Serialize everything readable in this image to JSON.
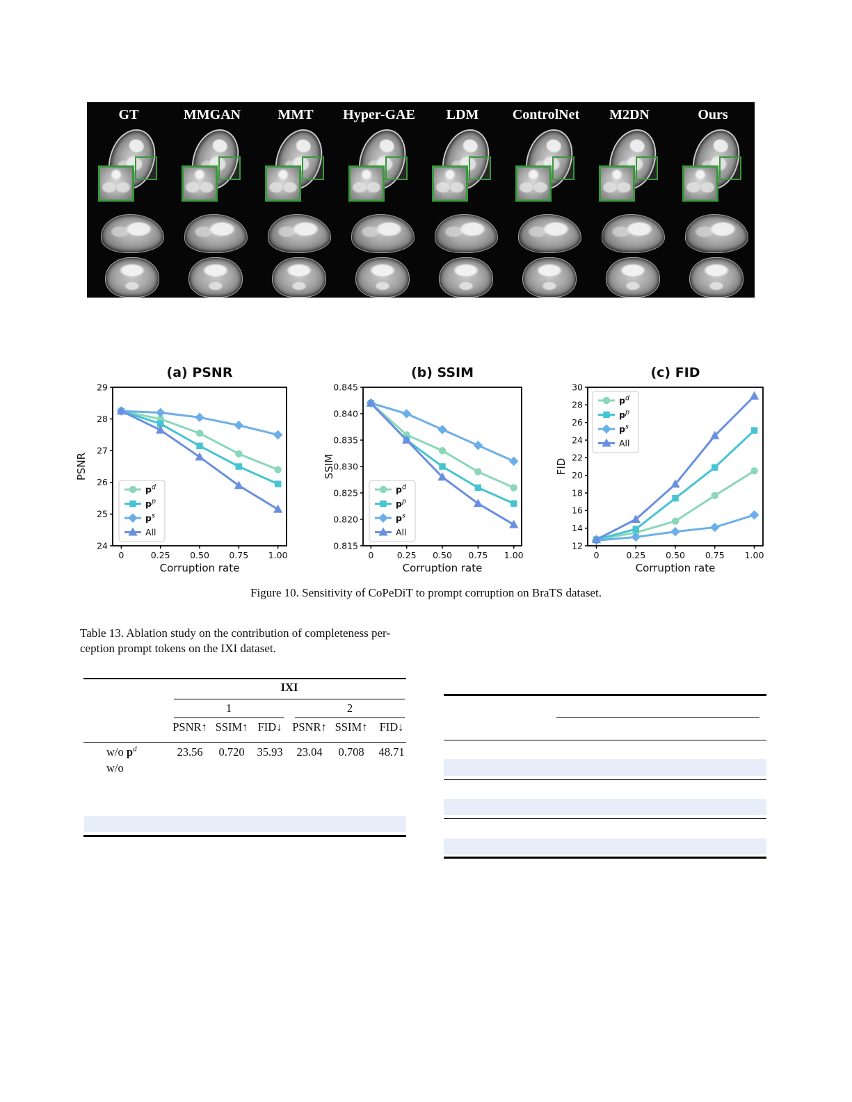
{
  "figure10": {
    "methods": [
      "GT",
      "MMGAN",
      "MMT",
      "Hyper-GAE",
      "LDM",
      "ControlNet",
      "M2DN",
      "Ours"
    ],
    "caption": "Figure 10. Sensitivity of CoPeDiT to prompt corruption on BraTS dataset.",
    "box_color": "#37983b"
  },
  "chart_data": [
    {
      "type": "line",
      "title": "(a) PSNR",
      "xlabel": "Corruption rate",
      "ylabel": "PSNR",
      "x": [
        0,
        0.25,
        0.5,
        0.75,
        1.0
      ],
      "xtick_labels": [
        "0",
        "0.25",
        "0.50",
        "0.75",
        "1.00"
      ],
      "ylim": [
        24,
        29
      ],
      "yticks": [
        24,
        25,
        26,
        27,
        28,
        29
      ],
      "ytick_labels": [
        "24",
        "25",
        "26",
        "27",
        "28",
        "29"
      ],
      "grid": false,
      "legend_position": "lower-left",
      "series": [
        {
          "label_symbol": "p",
          "label_sup": "d",
          "marker": "circle",
          "color": "#8bd7b9",
          "values": [
            28.25,
            28.0,
            27.55,
            26.9,
            26.4
          ]
        },
        {
          "label_symbol": "p",
          "label_sup": "p",
          "marker": "square",
          "color": "#45c4d2",
          "values": [
            28.25,
            27.85,
            27.15,
            26.5,
            25.95
          ]
        },
        {
          "label_symbol": "p",
          "label_sup": "s",
          "marker": "diamond",
          "color": "#6cafe8",
          "values": [
            28.25,
            28.2,
            28.05,
            27.8,
            27.5
          ]
        },
        {
          "label_symbol": "All",
          "label_sup": "",
          "marker": "triangle",
          "color": "#6a8fe0",
          "values": [
            28.25,
            27.65,
            26.8,
            25.9,
            25.15
          ]
        }
      ]
    },
    {
      "type": "line",
      "title": "(b) SSIM",
      "xlabel": "Corruption rate",
      "ylabel": "SSIM",
      "x": [
        0,
        0.25,
        0.5,
        0.75,
        1.0
      ],
      "xtick_labels": [
        "0",
        "0.25",
        "0.50",
        "0.75",
        "1.00"
      ],
      "ylim": [
        0.815,
        0.845
      ],
      "yticks": [
        0.815,
        0.82,
        0.825,
        0.83,
        0.835,
        0.84,
        0.845
      ],
      "ytick_labels": [
        "0.815",
        "0.820",
        "0.825",
        "0.830",
        "0.835",
        "0.840",
        "0.845"
      ],
      "grid": false,
      "legend_position": "lower-left",
      "series": [
        {
          "label_symbol": "p",
          "label_sup": "d",
          "marker": "circle",
          "color": "#8bd7b9",
          "values": [
            0.842,
            0.836,
            0.833,
            0.829,
            0.826
          ]
        },
        {
          "label_symbol": "p",
          "label_sup": "p",
          "marker": "square",
          "color": "#45c4d2",
          "values": [
            0.842,
            0.835,
            0.83,
            0.826,
            0.823
          ]
        },
        {
          "label_symbol": "p",
          "label_sup": "s",
          "marker": "diamond",
          "color": "#6cafe8",
          "values": [
            0.842,
            0.84,
            0.837,
            0.834,
            0.831
          ]
        },
        {
          "label_symbol": "All",
          "label_sup": "",
          "marker": "triangle",
          "color": "#6a8fe0",
          "values": [
            0.842,
            0.835,
            0.828,
            0.823,
            0.819
          ]
        }
      ]
    },
    {
      "type": "line",
      "title": "(c) FID",
      "xlabel": "Corruption rate",
      "ylabel": "FID",
      "x": [
        0,
        0.25,
        0.5,
        0.75,
        1.0
      ],
      "xtick_labels": [
        "0",
        "0.25",
        "0.50",
        "0.75",
        "1.00"
      ],
      "ylim": [
        12,
        30
      ],
      "yticks": [
        12,
        14,
        16,
        18,
        20,
        22,
        24,
        26,
        28,
        30
      ],
      "ytick_labels": [
        "12",
        "14",
        "16",
        "18",
        "20",
        "22",
        "24",
        "26",
        "28",
        "30"
      ],
      "grid": false,
      "legend_position": "upper-left",
      "series": [
        {
          "label_symbol": "p",
          "label_sup": "d",
          "marker": "circle",
          "color": "#8bd7b9",
          "values": [
            12.7,
            13.5,
            14.8,
            17.7,
            20.5
          ]
        },
        {
          "label_symbol": "p",
          "label_sup": "p",
          "marker": "square",
          "color": "#45c4d2",
          "values": [
            12.7,
            13.9,
            17.4,
            20.9,
            25.1
          ]
        },
        {
          "label_symbol": "p",
          "label_sup": "s",
          "marker": "diamond",
          "color": "#6cafe8",
          "values": [
            12.6,
            13.0,
            13.6,
            14.1,
            15.5
          ]
        },
        {
          "label_symbol": "All",
          "label_sup": "",
          "marker": "triangle",
          "color": "#6a8fe0",
          "values": [
            12.7,
            15.0,
            19.0,
            24.5,
            29.0
          ]
        }
      ]
    }
  ],
  "table13": {
    "caption_lines": [
      "Table 13. Ablation study on the contribution of completeness per-",
      "ception prompt tokens on the IXI dataset."
    ],
    "dataset_header": "IXI",
    "subgroup_headers": [
      "1",
      "2"
    ],
    "column_headers": [
      "PSNR↑",
      "SSIM↑",
      "FID↓",
      "PSNR↑",
      "SSIM↑",
      "FID↓"
    ],
    "rows": [
      {
        "label_prefix": "w/o ",
        "label_symbol": "p",
        "label_sup": "d",
        "values": [
          "23.56",
          "0.720",
          "35.93",
          "23.04",
          "0.708",
          "48.71"
        ]
      },
      {
        "label_prefix": "w/o",
        "label_symbol": "",
        "label_sup": "",
        "values": [
          "",
          "",
          "",
          "",
          "",
          ""
        ]
      }
    ],
    "highlight_color": "#e7eefa"
  },
  "right_table": {
    "highlight_color": "#e7eefa",
    "empty_highlight_rows": 3
  }
}
